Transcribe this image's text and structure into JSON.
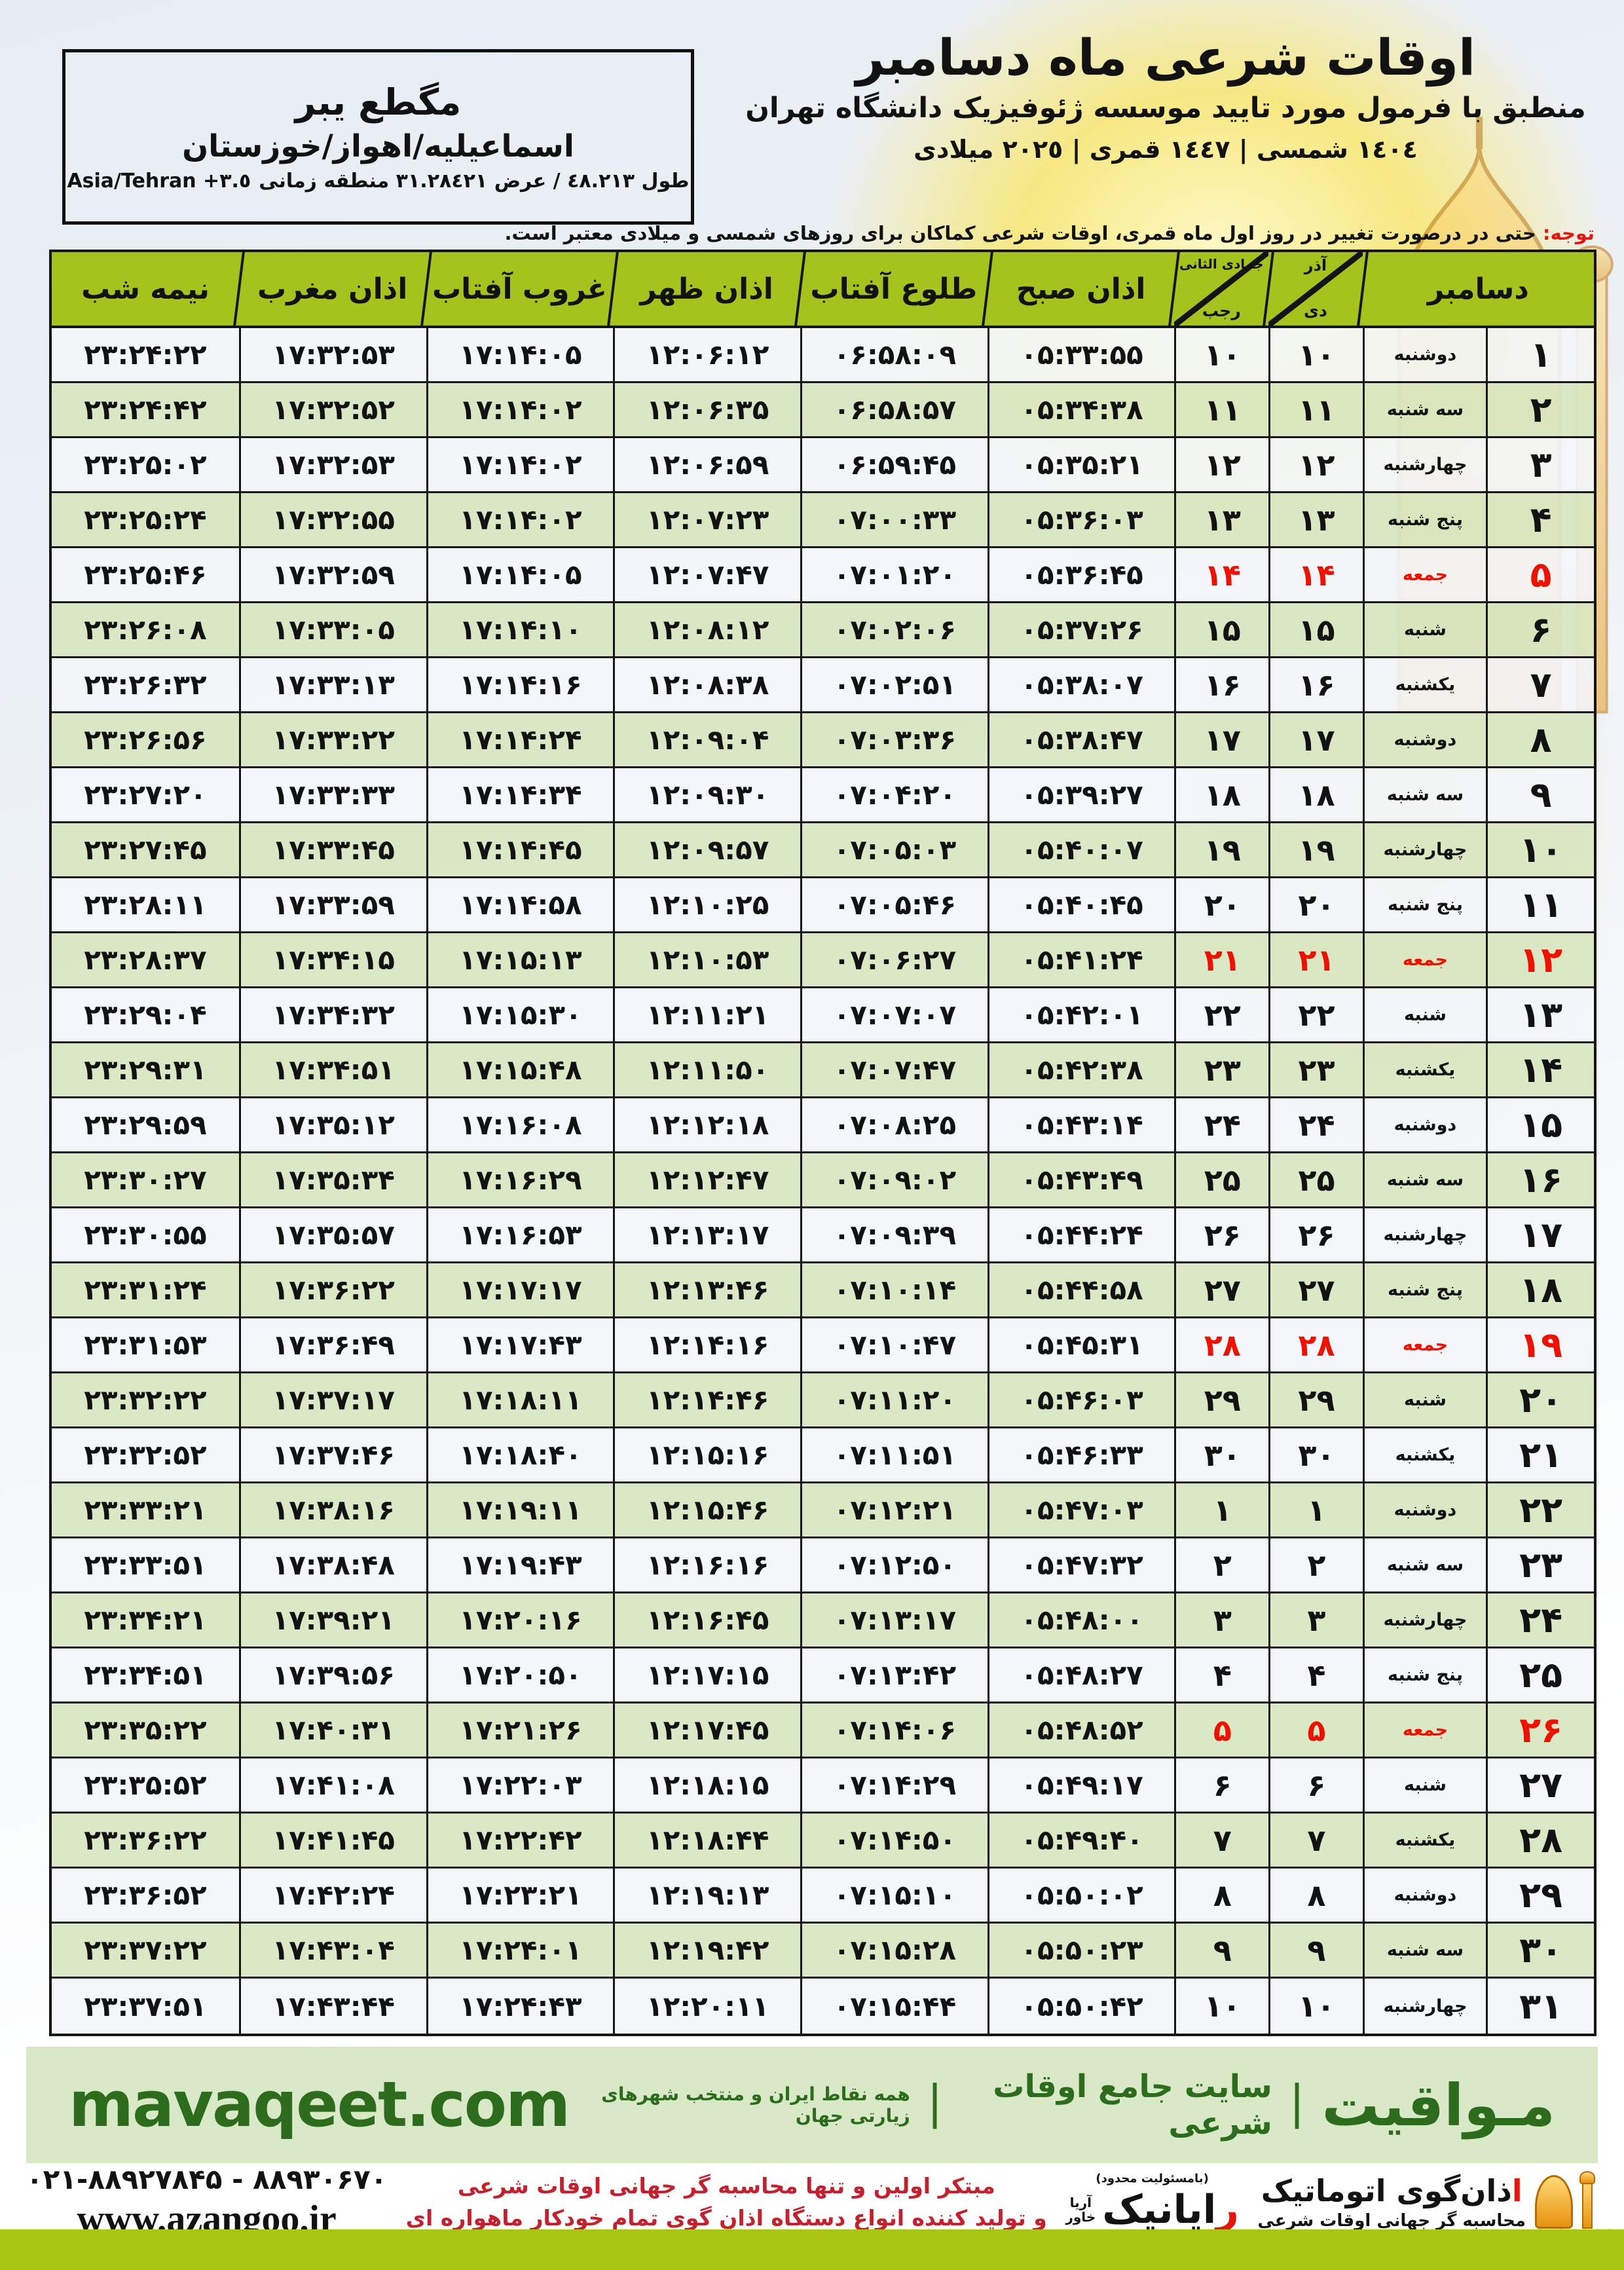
{
  "colors": {
    "accent_green": "#a6c31d",
    "row_light": "#f3f6fa",
    "row_green": "#d8e6c1",
    "friday_red": "#f01000",
    "band_green": "#d9e9c7",
    "brand_green": "#2c6c1c",
    "strip_green": "#a9c513",
    "note_red": "#e8150d"
  },
  "header": {
    "title": "اوقات شرعی ماه دسامبر",
    "subtitle": "منطبق با فرمول مورد تایید موسسه ژئوفیزیک دانشگاه تهران",
    "calendar_line": "١٤٠٤ شمسی | ١٤٤٧ قمری | ٢٠٢٥ میلادی",
    "location": {
      "line1": "مگطع یبر",
      "line2": "اسماعیلیه/اهواز/خوزستان",
      "line3_rtl": "طول ٤٨.٢١٣ / عرض ٣١.٢٨٤٢١ منطقه زمانی",
      "line3_ltr": "Asia/Tehran +٣.٥"
    },
    "note_label": "توجه:",
    "note_text": " حتی در درصورت تغییر در روز اول ماه قمری، اوقات شرعی کماکان برای روزهای شمسی و میلادی معتبر است."
  },
  "table": {
    "headers": {
      "december": "دسامبر",
      "solar_top": "آذر",
      "solar_bottom": "دی",
      "lunar_top": "جمادی الثانی",
      "lunar_bottom": "رجب",
      "fajr": "اذان صبح",
      "sunrise": "طلوع آفتاب",
      "dhuhr": "اذان ظهر",
      "sunset": "غروب آفتاب",
      "maghrib": "اذان مغرب",
      "midnight": "نیمه شب"
    },
    "rows": [
      {
        "day": "۱",
        "weekday": "دوشنبه",
        "solar": "۱۰",
        "lunar": "۱۰",
        "fajr": "۰۵:۳۳:۵۵",
        "sunrise": "۰۶:۵۸:۰۹",
        "dhuhr": "۱۲:۰۶:۱۲",
        "sunset": "۱۷:۱۴:۰۵",
        "maghrib": "۱۷:۳۲:۵۳",
        "midnight": "۲۳:۲۴:۲۲",
        "friday": false
      },
      {
        "day": "۲",
        "weekday": "سه شنبه",
        "solar": "۱۱",
        "lunar": "۱۱",
        "fajr": "۰۵:۳۴:۳۸",
        "sunrise": "۰۶:۵۸:۵۷",
        "dhuhr": "۱۲:۰۶:۳۵",
        "sunset": "۱۷:۱۴:۰۲",
        "maghrib": "۱۷:۳۲:۵۲",
        "midnight": "۲۳:۲۴:۴۲",
        "friday": false
      },
      {
        "day": "۳",
        "weekday": "چهارشنبه",
        "solar": "۱۲",
        "lunar": "۱۲",
        "fajr": "۰۵:۳۵:۲۱",
        "sunrise": "۰۶:۵۹:۴۵",
        "dhuhr": "۱۲:۰۶:۵۹",
        "sunset": "۱۷:۱۴:۰۲",
        "maghrib": "۱۷:۳۲:۵۳",
        "midnight": "۲۳:۲۵:۰۲",
        "friday": false
      },
      {
        "day": "۴",
        "weekday": "پنج شنبه",
        "solar": "۱۳",
        "lunar": "۱۳",
        "fajr": "۰۵:۳۶:۰۳",
        "sunrise": "۰۷:۰۰:۳۳",
        "dhuhr": "۱۲:۰۷:۲۳",
        "sunset": "۱۷:۱۴:۰۲",
        "maghrib": "۱۷:۳۲:۵۵",
        "midnight": "۲۳:۲۵:۲۴",
        "friday": false
      },
      {
        "day": "۵",
        "weekday": "جمعه",
        "solar": "۱۴",
        "lunar": "۱۴",
        "fajr": "۰۵:۳۶:۴۵",
        "sunrise": "۰۷:۰۱:۲۰",
        "dhuhr": "۱۲:۰۷:۴۷",
        "sunset": "۱۷:۱۴:۰۵",
        "maghrib": "۱۷:۳۲:۵۹",
        "midnight": "۲۳:۲۵:۴۶",
        "friday": true
      },
      {
        "day": "۶",
        "weekday": "شنبه",
        "solar": "۱۵",
        "lunar": "۱۵",
        "fajr": "۰۵:۳۷:۲۶",
        "sunrise": "۰۷:۰۲:۰۶",
        "dhuhr": "۱۲:۰۸:۱۲",
        "sunset": "۱۷:۱۴:۱۰",
        "maghrib": "۱۷:۳۳:۰۵",
        "midnight": "۲۳:۲۶:۰۸",
        "friday": false
      },
      {
        "day": "۷",
        "weekday": "یکشنبه",
        "solar": "۱۶",
        "lunar": "۱۶",
        "fajr": "۰۵:۳۸:۰۷",
        "sunrise": "۰۷:۰۲:۵۱",
        "dhuhr": "۱۲:۰۸:۳۸",
        "sunset": "۱۷:۱۴:۱۶",
        "maghrib": "۱۷:۳۳:۱۳",
        "midnight": "۲۳:۲۶:۳۲",
        "friday": false
      },
      {
        "day": "۸",
        "weekday": "دوشنبه",
        "solar": "۱۷",
        "lunar": "۱۷",
        "fajr": "۰۵:۳۸:۴۷",
        "sunrise": "۰۷:۰۳:۳۶",
        "dhuhr": "۱۲:۰۹:۰۴",
        "sunset": "۱۷:۱۴:۲۴",
        "maghrib": "۱۷:۳۳:۲۲",
        "midnight": "۲۳:۲۶:۵۶",
        "friday": false
      },
      {
        "day": "۹",
        "weekday": "سه شنبه",
        "solar": "۱۸",
        "lunar": "۱۸",
        "fajr": "۰۵:۳۹:۲۷",
        "sunrise": "۰۷:۰۴:۲۰",
        "dhuhr": "۱۲:۰۹:۳۰",
        "sunset": "۱۷:۱۴:۳۴",
        "maghrib": "۱۷:۳۳:۳۳",
        "midnight": "۲۳:۲۷:۲۰",
        "friday": false
      },
      {
        "day": "۱۰",
        "weekday": "چهارشنبه",
        "solar": "۱۹",
        "lunar": "۱۹",
        "fajr": "۰۵:۴۰:۰۷",
        "sunrise": "۰۷:۰۵:۰۳",
        "dhuhr": "۱۲:۰۹:۵۷",
        "sunset": "۱۷:۱۴:۴۵",
        "maghrib": "۱۷:۳۳:۴۵",
        "midnight": "۲۳:۲۷:۴۵",
        "friday": false
      },
      {
        "day": "۱۱",
        "weekday": "پنج شنبه",
        "solar": "۲۰",
        "lunar": "۲۰",
        "fajr": "۰۵:۴۰:۴۵",
        "sunrise": "۰۷:۰۵:۴۶",
        "dhuhr": "۱۲:۱۰:۲۵",
        "sunset": "۱۷:۱۴:۵۸",
        "maghrib": "۱۷:۳۳:۵۹",
        "midnight": "۲۳:۲۸:۱۱",
        "friday": false
      },
      {
        "day": "۱۲",
        "weekday": "جمعه",
        "solar": "۲۱",
        "lunar": "۲۱",
        "fajr": "۰۵:۴۱:۲۴",
        "sunrise": "۰۷:۰۶:۲۷",
        "dhuhr": "۱۲:۱۰:۵۳",
        "sunset": "۱۷:۱۵:۱۳",
        "maghrib": "۱۷:۳۴:۱۵",
        "midnight": "۲۳:۲۸:۳۷",
        "friday": true
      },
      {
        "day": "۱۳",
        "weekday": "شنبه",
        "solar": "۲۲",
        "lunar": "۲۲",
        "fajr": "۰۵:۴۲:۰۱",
        "sunrise": "۰۷:۰۷:۰۷",
        "dhuhr": "۱۲:۱۱:۲۱",
        "sunset": "۱۷:۱۵:۳۰",
        "maghrib": "۱۷:۳۴:۳۲",
        "midnight": "۲۳:۲۹:۰۴",
        "friday": false
      },
      {
        "day": "۱۴",
        "weekday": "یکشنبه",
        "solar": "۲۳",
        "lunar": "۲۳",
        "fajr": "۰۵:۴۲:۳۸",
        "sunrise": "۰۷:۰۷:۴۷",
        "dhuhr": "۱۲:۱۱:۵۰",
        "sunset": "۱۷:۱۵:۴۸",
        "maghrib": "۱۷:۳۴:۵۱",
        "midnight": "۲۳:۲۹:۳۱",
        "friday": false
      },
      {
        "day": "۱۵",
        "weekday": "دوشنبه",
        "solar": "۲۴",
        "lunar": "۲۴",
        "fajr": "۰۵:۴۳:۱۴",
        "sunrise": "۰۷:۰۸:۲۵",
        "dhuhr": "۱۲:۱۲:۱۸",
        "sunset": "۱۷:۱۶:۰۸",
        "maghrib": "۱۷:۳۵:۱۲",
        "midnight": "۲۳:۲۹:۵۹",
        "friday": false
      },
      {
        "day": "۱۶",
        "weekday": "سه شنبه",
        "solar": "۲۵",
        "lunar": "۲۵",
        "fajr": "۰۵:۴۳:۴۹",
        "sunrise": "۰۷:۰۹:۰۲",
        "dhuhr": "۱۲:۱۲:۴۷",
        "sunset": "۱۷:۱۶:۲۹",
        "maghrib": "۱۷:۳۵:۳۴",
        "midnight": "۲۳:۳۰:۲۷",
        "friday": false
      },
      {
        "day": "۱۷",
        "weekday": "چهارشنبه",
        "solar": "۲۶",
        "lunar": "۲۶",
        "fajr": "۰۵:۴۴:۲۴",
        "sunrise": "۰۷:۰۹:۳۹",
        "dhuhr": "۱۲:۱۳:۱۷",
        "sunset": "۱۷:۱۶:۵۳",
        "maghrib": "۱۷:۳۵:۵۷",
        "midnight": "۲۳:۳۰:۵۵",
        "friday": false
      },
      {
        "day": "۱۸",
        "weekday": "پنج شنبه",
        "solar": "۲۷",
        "lunar": "۲۷",
        "fajr": "۰۵:۴۴:۵۸",
        "sunrise": "۰۷:۱۰:۱۴",
        "dhuhr": "۱۲:۱۳:۴۶",
        "sunset": "۱۷:۱۷:۱۷",
        "maghrib": "۱۷:۳۶:۲۲",
        "midnight": "۲۳:۳۱:۲۴",
        "friday": false
      },
      {
        "day": "۱۹",
        "weekday": "جمعه",
        "solar": "۲۸",
        "lunar": "۲۸",
        "fajr": "۰۵:۴۵:۳۱",
        "sunrise": "۰۷:۱۰:۴۷",
        "dhuhr": "۱۲:۱۴:۱۶",
        "sunset": "۱۷:۱۷:۴۳",
        "maghrib": "۱۷:۳۶:۴۹",
        "midnight": "۲۳:۳۱:۵۳",
        "friday": true
      },
      {
        "day": "۲۰",
        "weekday": "شنبه",
        "solar": "۲۹",
        "lunar": "۲۹",
        "fajr": "۰۵:۴۶:۰۳",
        "sunrise": "۰۷:۱۱:۲۰",
        "dhuhr": "۱۲:۱۴:۴۶",
        "sunset": "۱۷:۱۸:۱۱",
        "maghrib": "۱۷:۳۷:۱۷",
        "midnight": "۲۳:۳۲:۲۲",
        "friday": false
      },
      {
        "day": "۲۱",
        "weekday": "یکشنبه",
        "solar": "۳۰",
        "lunar": "۳۰",
        "fajr": "۰۵:۴۶:۳۳",
        "sunrise": "۰۷:۱۱:۵۱",
        "dhuhr": "۱۲:۱۵:۱۶",
        "sunset": "۱۷:۱۸:۴۰",
        "maghrib": "۱۷:۳۷:۴۶",
        "midnight": "۲۳:۳۲:۵۲",
        "friday": false
      },
      {
        "day": "۲۲",
        "weekday": "دوشنبه",
        "solar": "۱",
        "lunar": "۱",
        "fajr": "۰۵:۴۷:۰۳",
        "sunrise": "۰۷:۱۲:۲۱",
        "dhuhr": "۱۲:۱۵:۴۶",
        "sunset": "۱۷:۱۹:۱۱",
        "maghrib": "۱۷:۳۸:۱۶",
        "midnight": "۲۳:۳۳:۲۱",
        "friday": false
      },
      {
        "day": "۲۳",
        "weekday": "سه شنبه",
        "solar": "۲",
        "lunar": "۲",
        "fajr": "۰۵:۴۷:۳۲",
        "sunrise": "۰۷:۱۲:۵۰",
        "dhuhr": "۱۲:۱۶:۱۶",
        "sunset": "۱۷:۱۹:۴۳",
        "maghrib": "۱۷:۳۸:۴۸",
        "midnight": "۲۳:۳۳:۵۱",
        "friday": false
      },
      {
        "day": "۲۴",
        "weekday": "چهارشنبه",
        "solar": "۳",
        "lunar": "۳",
        "fajr": "۰۵:۴۸:۰۰",
        "sunrise": "۰۷:۱۳:۱۷",
        "dhuhr": "۱۲:۱۶:۴۵",
        "sunset": "۱۷:۲۰:۱۶",
        "maghrib": "۱۷:۳۹:۲۱",
        "midnight": "۲۳:۳۴:۲۱",
        "friday": false
      },
      {
        "day": "۲۵",
        "weekday": "پنج شنبه",
        "solar": "۴",
        "lunar": "۴",
        "fajr": "۰۵:۴۸:۲۷",
        "sunrise": "۰۷:۱۳:۴۲",
        "dhuhr": "۱۲:۱۷:۱۵",
        "sunset": "۱۷:۲۰:۵۰",
        "maghrib": "۱۷:۳۹:۵۶",
        "midnight": "۲۳:۳۴:۵۱",
        "friday": false
      },
      {
        "day": "۲۶",
        "weekday": "جمعه",
        "solar": "۵",
        "lunar": "۵",
        "fajr": "۰۵:۴۸:۵۲",
        "sunrise": "۰۷:۱۴:۰۶",
        "dhuhr": "۱۲:۱۷:۴۵",
        "sunset": "۱۷:۲۱:۲۶",
        "maghrib": "۱۷:۴۰:۳۱",
        "midnight": "۲۳:۳۵:۲۲",
        "friday": true
      },
      {
        "day": "۲۷",
        "weekday": "شنبه",
        "solar": "۶",
        "lunar": "۶",
        "fajr": "۰۵:۴۹:۱۷",
        "sunrise": "۰۷:۱۴:۲۹",
        "dhuhr": "۱۲:۱۸:۱۵",
        "sunset": "۱۷:۲۲:۰۳",
        "maghrib": "۱۷:۴۱:۰۸",
        "midnight": "۲۳:۳۵:۵۲",
        "friday": false
      },
      {
        "day": "۲۸",
        "weekday": "یکشنبه",
        "solar": "۷",
        "lunar": "۷",
        "fajr": "۰۵:۴۹:۴۰",
        "sunrise": "۰۷:۱۴:۵۰",
        "dhuhr": "۱۲:۱۸:۴۴",
        "sunset": "۱۷:۲۲:۴۲",
        "maghrib": "۱۷:۴۱:۴۵",
        "midnight": "۲۳:۳۶:۲۲",
        "friday": false
      },
      {
        "day": "۲۹",
        "weekday": "دوشنبه",
        "solar": "۸",
        "lunar": "۸",
        "fajr": "۰۵:۵۰:۰۲",
        "sunrise": "۰۷:۱۵:۱۰",
        "dhuhr": "۱۲:۱۹:۱۳",
        "sunset": "۱۷:۲۳:۲۱",
        "maghrib": "۱۷:۴۲:۲۴",
        "midnight": "۲۳:۳۶:۵۲",
        "friday": false
      },
      {
        "day": "۳۰",
        "weekday": "سه شنبه",
        "solar": "۹",
        "lunar": "۹",
        "fajr": "۰۵:۵۰:۲۳",
        "sunrise": "۰۷:۱۵:۲۸",
        "dhuhr": "۱۲:۱۹:۴۲",
        "sunset": "۱۷:۲۴:۰۱",
        "maghrib": "۱۷:۴۳:۰۴",
        "midnight": "۲۳:۳۷:۲۲",
        "friday": false
      },
      {
        "day": "۳۱",
        "weekday": "چهارشنبه",
        "solar": "۱۰",
        "lunar": "۱۰",
        "fajr": "۰۵:۵۰:۴۲",
        "sunrise": "۰۷:۱۵:۴۴",
        "dhuhr": "۱۲:۲۰:۱۱",
        "sunset": "۱۷:۲۴:۴۳",
        "maghrib": "۱۷:۴۳:۴۴",
        "midnight": "۲۳:۳۷:۵۱",
        "friday": false
      }
    ]
  },
  "footer": {
    "site_en": "mavaqeet.com",
    "brand": "مـواقیت",
    "pipe": "|",
    "brand_sub": "سایت جامع اوقات شرعی",
    "brand_tagline": "همه نقاط ایران و منتخب شهرهای زیارتی جهان",
    "phone": "۰۲۱-۸۸۹۲۷۸۴۵ - ۸۸۹۳۰۶۷۰",
    "website": "www.azangoo.ir",
    "red_line1": "مبتکر اولین و تنها محاسبه گر جهانی اوقات شرعی",
    "red_line2": "و تولید کننده انواع دستگاه اذان گوی تمام خودکار ماهواره ای",
    "rayanik_note": "(بامسئولیت محدود)",
    "rayanik_first": "ر",
    "rayanik_rest": "ایانیک",
    "rayanik_side_top": "آریا",
    "rayanik_side_bottom": "خاور",
    "azangoo_first": "ا",
    "azangoo_rest": "ذان‌گوی اتوماتیک",
    "azangoo_tagline": "محاسبه گر جهانی اوقات شرعی",
    "azangoo_en_first": "a",
    "azangoo_en_rest": "zangoo"
  }
}
